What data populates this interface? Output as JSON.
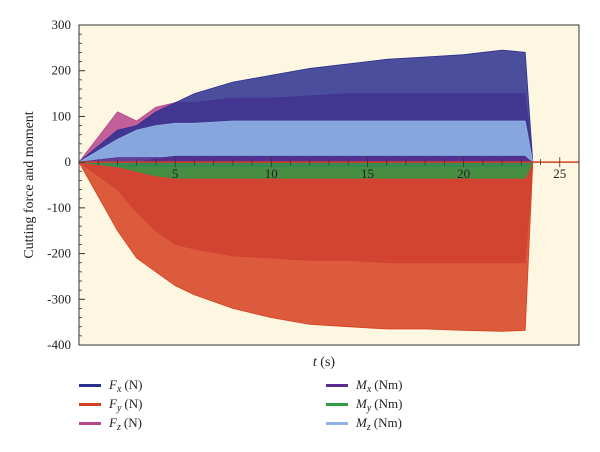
{
  "chart_data": {
    "type": "line",
    "ylabel": "Cutting force and moment",
    "xlabel_symbol": "t",
    "xlabel_unit": " (s)",
    "xlim": [
      0,
      26
    ],
    "ylim": [
      -400,
      300
    ],
    "x_ticks": [
      5,
      10,
      15,
      20,
      25
    ],
    "y_ticks": [
      300,
      200,
      100,
      0,
      -100,
      -200,
      -300,
      -400
    ],
    "background": "#fdf7e1",
    "series": [
      {
        "name": "Fx (N)",
        "symbol": "F",
        "sub": "x",
        "unit": "(N)",
        "color": "#2b2f91",
        "x": [
          0,
          2,
          3,
          4,
          5,
          6,
          8,
          10,
          12,
          14,
          16,
          18,
          20,
          22,
          23.2,
          23.6,
          26
        ],
        "upper": [
          0,
          70,
          80,
          110,
          130,
          150,
          175,
          190,
          205,
          215,
          225,
          230,
          235,
          245,
          240,
          0,
          0
        ],
        "lower": [
          0,
          -10,
          -10,
          -5,
          0,
          0,
          0,
          0,
          0,
          0,
          0,
          0,
          0,
          0,
          0,
          0,
          0
        ]
      },
      {
        "name": "Fy (N)",
        "symbol": "F",
        "sub": "y",
        "unit": "(N)",
        "color": "#d5401f",
        "x": [
          0,
          2,
          3,
          4,
          5,
          6,
          8,
          10,
          12,
          14,
          16,
          18,
          20,
          22,
          23.2,
          23.6,
          26
        ],
        "upper": [
          0,
          0,
          0,
          0,
          0,
          0,
          0,
          0,
          0,
          0,
          0,
          0,
          0,
          0,
          0,
          0,
          0
        ],
        "lower": [
          0,
          -150,
          -210,
          -240,
          -270,
          -290,
          -320,
          -340,
          -355,
          -360,
          -365,
          -365,
          -368,
          -370,
          -368,
          0,
          0
        ]
      },
      {
        "name": "Fz (N)",
        "symbol": "F",
        "sub": "z",
        "unit": "(N)",
        "color": "#b8458d",
        "x": [
          0,
          2,
          3,
          4,
          5,
          6,
          8,
          10,
          12,
          14,
          16,
          18,
          20,
          22,
          23.2,
          23.6,
          26
        ],
        "upper": [
          0,
          110,
          90,
          120,
          130,
          130,
          140,
          140,
          145,
          150,
          150,
          150,
          150,
          150,
          150,
          0,
          0
        ],
        "lower": [
          0,
          -60,
          -110,
          -150,
          -180,
          -190,
          -205,
          -210,
          -215,
          -215,
          -220,
          -220,
          -220,
          -220,
          -220,
          0,
          0
        ]
      },
      {
        "name": "Mx (Nm)",
        "symbol": "M",
        "sub": "x",
        "unit": "(Nm)",
        "color": "#5b2c8f",
        "x": [
          0,
          2,
          3,
          5,
          10,
          15,
          20,
          23.2,
          23.6,
          26
        ],
        "upper": [
          0,
          10,
          10,
          10,
          10,
          10,
          10,
          10,
          0,
          0
        ],
        "lower": [
          0,
          -10,
          -10,
          -10,
          -10,
          -10,
          -10,
          -10,
          0,
          0
        ]
      },
      {
        "name": "My (Nm)",
        "symbol": "M",
        "sub": "y",
        "unit": "(Nm)",
        "color": "#2f9b45",
        "x": [
          0,
          2,
          3,
          4,
          5,
          10,
          15,
          20,
          23.2,
          23.6,
          26
        ],
        "upper": [
          0,
          0,
          0,
          0,
          0,
          0,
          0,
          0,
          0,
          0,
          0
        ],
        "lower": [
          0,
          -10,
          -20,
          -30,
          -35,
          -35,
          -35,
          -35,
          -35,
          0,
          0
        ]
      },
      {
        "name": "Mz (Nm)",
        "symbol": "M",
        "sub": "z",
        "unit": "(Nm)",
        "color": "#8fb3e6",
        "x": [
          0,
          2,
          3,
          4,
          5,
          6,
          8,
          10,
          12,
          14,
          16,
          18,
          20,
          22,
          23.2,
          23.6,
          26
        ],
        "upper": [
          0,
          50,
          70,
          80,
          85,
          85,
          90,
          90,
          90,
          90,
          90,
          90,
          90,
          90,
          90,
          0,
          0
        ],
        "lower": [
          0,
          -10,
          0,
          10,
          15,
          15,
          15,
          15,
          15,
          15,
          15,
          15,
          15,
          15,
          15,
          0,
          0
        ]
      }
    ]
  }
}
